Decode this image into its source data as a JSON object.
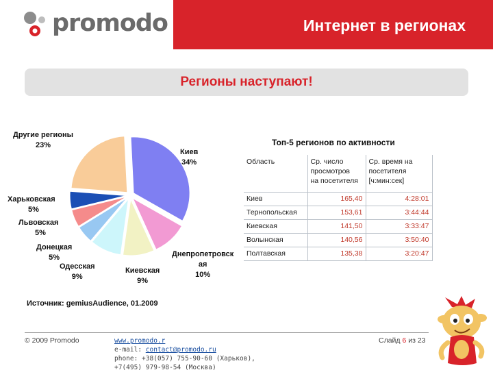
{
  "header": {
    "logo_text": "promodo",
    "title": "Интернет в регионах"
  },
  "banner": {
    "text": "Регионы наступают!"
  },
  "chart_data": {
    "type": "pie",
    "title": "",
    "slices": [
      {
        "name": "Киев",
        "value": 34,
        "label": "34%",
        "color": "#7f7ff2"
      },
      {
        "name": "Днепропетровская",
        "value": 10,
        "label": "10%",
        "color": "#f29ad3"
      },
      {
        "name": "Киевская",
        "value": 9,
        "label": "9%",
        "color": "#f2f2c4"
      },
      {
        "name": "Одесская",
        "value": 9,
        "label": "9%",
        "color": "#cdf6fb"
      },
      {
        "name": "Донецкая",
        "value": 5,
        "label": "5%",
        "color": "#98c8f2"
      },
      {
        "name": "Львовская",
        "value": 5,
        "label": "5%",
        "color": "#f58b8b"
      },
      {
        "name": "Харьковская",
        "value": 5,
        "label": "5%",
        "color": "#1b4fb5"
      },
      {
        "name": "Другие регионы",
        "value": 23,
        "label": "23%",
        "color": "#f9cc99"
      }
    ],
    "source": "Источник: gemiusAudience, 01.2009"
  },
  "labels": {
    "kiev_name": "Киев",
    "kiev_pct": "34%",
    "dnepr_name_1": "Днепропетровск",
    "dnepr_name_2": "ая",
    "dnepr_pct": "10%",
    "kievsk_name": "Киевская",
    "kievsk_pct": "9%",
    "odessa_name": "Одесская",
    "odessa_pct": "9%",
    "donetsk_name": "Донецкая",
    "donetsk_pct": "5%",
    "lviv_name": "Львовская",
    "lviv_pct": "5%",
    "kharkiv_name": "Харьковская",
    "kharkiv_pct": "5%",
    "other_name": "Другие регионы",
    "other_pct": "23%"
  },
  "table": {
    "title": "Топ-5 регионов по активности",
    "headers": {
      "region": "Область",
      "views_1": "Ср. число",
      "views_2": "просмотров",
      "views_3": "на посетителя",
      "time_1": "Ср. время на",
      "time_2": "посетителя",
      "time_3": "[ч:мин:сек]"
    },
    "rows": [
      {
        "region": "Киев",
        "views": "165,40",
        "time": "4:28:01"
      },
      {
        "region": "Тернопольская",
        "views": "153,61",
        "time": "3:44:44"
      },
      {
        "region": "Киевская",
        "views": "141,50",
        "time": "3:33:47"
      },
      {
        "region": "Волынская",
        "views": "140,56",
        "time": "3:50:40"
      },
      {
        "region": "Полтавская",
        "views": "135,38",
        "time": "3:20:47"
      }
    ]
  },
  "footer": {
    "copyright": "© 2009  Promodo",
    "website": "www.promodo.r",
    "email_label": "e-mail: ",
    "email": "contact@promodo.ru",
    "phone_1": "phone: +38(057) 755-90-60 (Харьков),",
    "phone_2": "+7(495) 979-98-54 (Москва)",
    "slide_prefix": "Слайд ",
    "slide_current": "6",
    "slide_suffix": " из 23"
  }
}
